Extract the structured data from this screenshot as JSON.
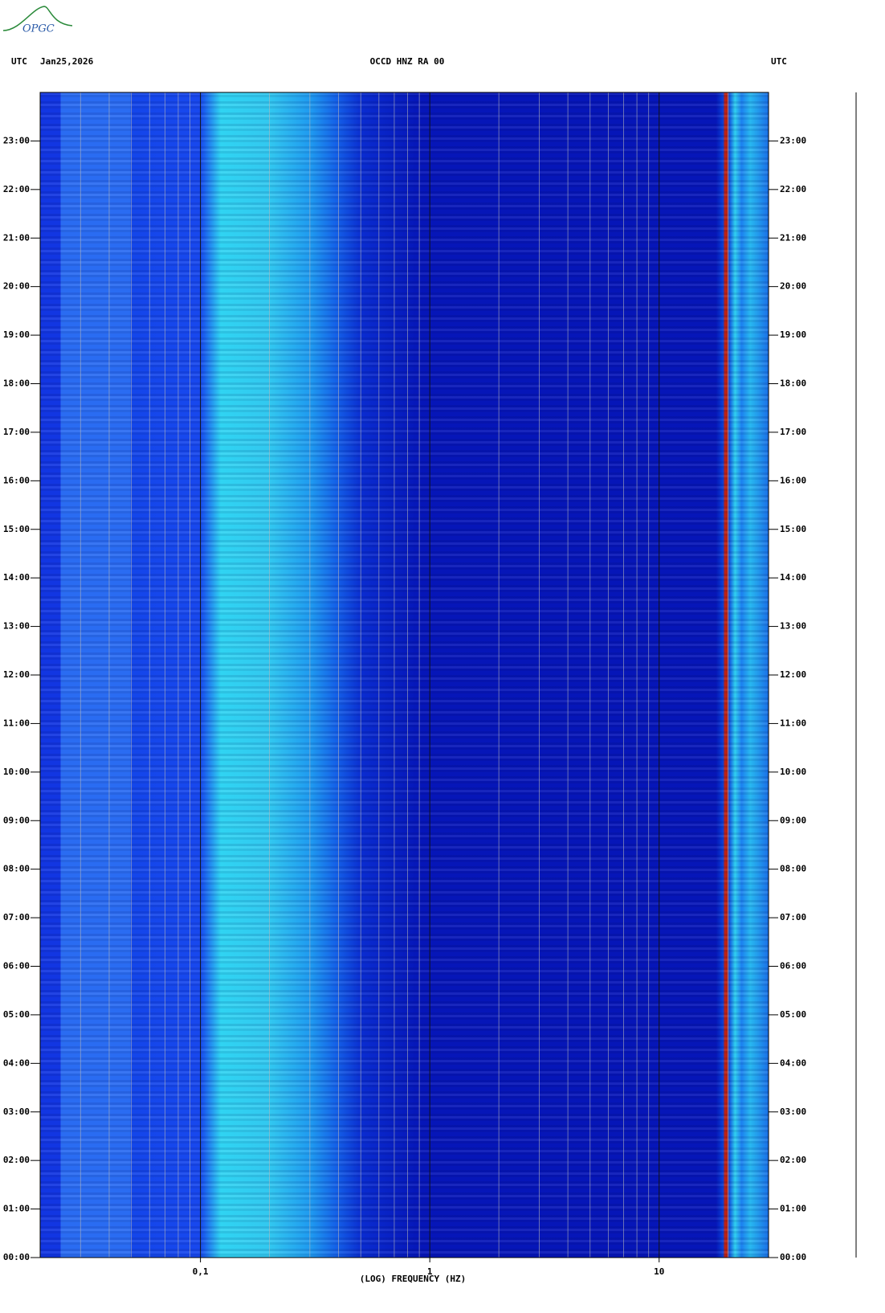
{
  "logo": "OPGC",
  "chart_data": {
    "type": "spectrogram",
    "title": "OCCD HNZ RA 00",
    "date": "Jan25,2026",
    "left_axis_label": "UTC",
    "right_axis_label": "UTC",
    "xlabel": "(LOG) FREQUENCY (HZ)",
    "xscale": "log",
    "xlim": [
      0.02,
      30
    ],
    "xticks": [
      {
        "value": 0.1,
        "label": "0,1"
      },
      1,
      10
    ],
    "x_minor_grid": [
      0.03,
      0.04,
      0.05,
      0.06,
      0.07,
      0.08,
      0.09,
      0.2,
      0.3,
      0.4,
      0.5,
      0.6,
      0.7,
      0.8,
      0.9,
      2,
      3,
      4,
      5,
      6,
      7,
      8,
      9,
      20
    ],
    "ylim": [
      0,
      24
    ],
    "yticks": [
      {
        "value": 0,
        "label": "00:00"
      },
      {
        "value": 1,
        "label": "01:00"
      },
      {
        "value": 2,
        "label": "02:00"
      },
      {
        "value": 3,
        "label": "03:00"
      },
      {
        "value": 4,
        "label": "04:00"
      },
      {
        "value": 5,
        "label": "05:00"
      },
      {
        "value": 6,
        "label": "06:00"
      },
      {
        "value": 7,
        "label": "07:00"
      },
      {
        "value": 8,
        "label": "08:00"
      },
      {
        "value": 9,
        "label": "09:00"
      },
      {
        "value": 10,
        "label": "10:00"
      },
      {
        "value": 11,
        "label": "11:00"
      },
      {
        "value": 12,
        "label": "12:00"
      },
      {
        "value": 13,
        "label": "13:00"
      },
      {
        "value": 14,
        "label": "14:00"
      },
      {
        "value": 15,
        "label": "15:00"
      },
      {
        "value": 16,
        "label": "16:00"
      },
      {
        "value": 17,
        "label": "17:00"
      },
      {
        "value": 18,
        "label": "18:00"
      },
      {
        "value": 19,
        "label": "19:00"
      },
      {
        "value": 20,
        "label": "20:00"
      },
      {
        "value": 21,
        "label": "21:00"
      },
      {
        "value": 22,
        "label": "22:00"
      },
      {
        "value": 23,
        "label": "23:00"
      }
    ],
    "grid": true
  }
}
